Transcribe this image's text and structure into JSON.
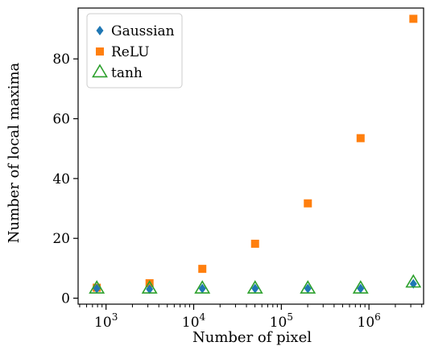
{
  "chart_data": {
    "type": "scatter",
    "xscale": "log",
    "xlabel": "Number of pixel",
    "ylabel": "Number of local maxima",
    "xlim": [
      480,
      4200000
    ],
    "ylim": [
      -2,
      97
    ],
    "x_ticks": [
      {
        "value": 1000,
        "base": "10",
        "exp": "3"
      },
      {
        "value": 10000,
        "base": "10",
        "exp": "4"
      },
      {
        "value": 100000,
        "base": "10",
        "exp": "5"
      },
      {
        "value": 1000000,
        "base": "10",
        "exp": "6"
      }
    ],
    "y_ticks": [
      0,
      20,
      40,
      60,
      80
    ],
    "grid": false,
    "legend_position": "top-left",
    "series": [
      {
        "name": "Gaussian",
        "marker": "diamond",
        "color": "#1f77b4",
        "x": [
          784,
          3136,
          12544,
          50176,
          200704,
          802816,
          3211264
        ],
        "y": [
          3.2,
          3.0,
          3.2,
          3.2,
          3.2,
          3.2,
          4.8
        ]
      },
      {
        "name": "ReLU",
        "marker": "square",
        "color": "#ff7f0e",
        "x": [
          784,
          3136,
          12544,
          50176,
          200704,
          802816,
          3211264
        ],
        "y": [
          3.5,
          5.0,
          9.8,
          18.2,
          31.7,
          53.5,
          93.4
        ]
      },
      {
        "name": "tanh",
        "marker": "triangle",
        "color": "#2ca02c",
        "x": [
          784,
          3136,
          12544,
          50176,
          200704,
          802816,
          3211264
        ],
        "y": [
          3.2,
          3.2,
          3.2,
          3.2,
          3.2,
          3.2,
          5.2
        ]
      }
    ]
  }
}
